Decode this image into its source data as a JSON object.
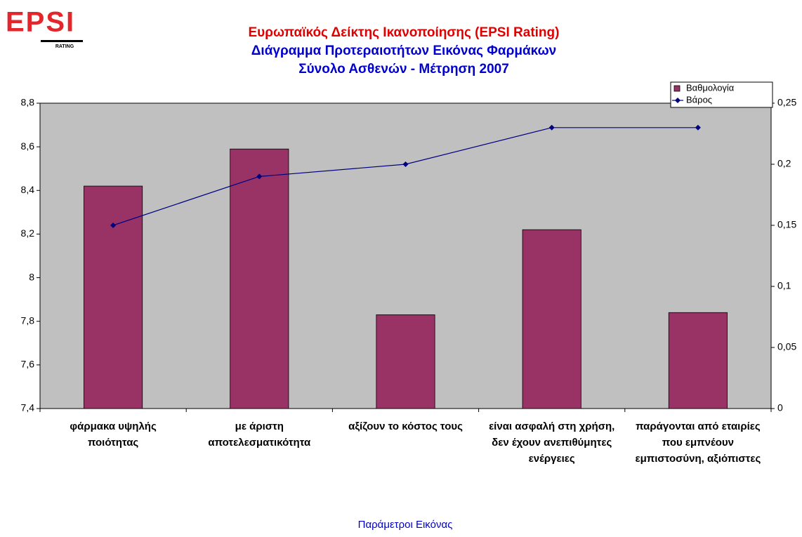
{
  "logo": {
    "text": "EPSI",
    "subtext": "RATING"
  },
  "chart_data": {
    "type": "bar",
    "title": "Ευρωπαϊκός Δείκτης Ικανοποίησης (EPSI Rating)",
    "subtitle": [
      "Διάγραμμα Προτεραιοτήτων Εικόνας Φαρμάκων",
      "Σύνολο Ασθενών - Μέτρηση 2007"
    ],
    "x_label": "Παράμετροι Εικόνας",
    "categories": [
      "φάρμακα υψηλής ποιότητας",
      "με άριστη αποτελεσματικότητα",
      "αξίζουν το κόστος τους",
      "είναι ασφαλή στη χρήση, δεν έχουν ανεπιθύμητες ενέργειες",
      "παράγονται από εταιρίες που εμπνέουν εμπιστοσύνη, αξιόπιστες"
    ],
    "series": [
      {
        "name": "Βαθμολογία",
        "type": "bar",
        "color": "#993366",
        "values": [
          8.42,
          8.59,
          7.83,
          8.22,
          7.84
        ]
      },
      {
        "name": "Βάρος",
        "type": "line",
        "axis": "y2",
        "color": "#000080",
        "values": [
          0.15,
          0.19,
          0.2,
          0.23,
          0.23
        ]
      }
    ],
    "ylim": [
      7.4,
      8.8
    ],
    "yticks": [
      {
        "value": 7.4,
        "label": "7,4"
      },
      {
        "value": 7.6,
        "label": "7,6"
      },
      {
        "value": 7.8,
        "label": "7,8"
      },
      8,
      {
        "value": 8.2,
        "label": "8,2"
      },
      {
        "value": 8.4,
        "label": "8,4"
      },
      {
        "value": 8.6,
        "label": "8,6"
      },
      {
        "value": 8.8,
        "label": "8,8"
      }
    ],
    "y2lim": [
      0,
      0.25
    ],
    "y2ticks": [
      0,
      {
        "value": 0.05,
        "label": "0,05"
      },
      {
        "value": 0.1,
        "label": "0,1"
      },
      {
        "value": 0.15,
        "label": "0,15"
      },
      {
        "value": 0.2,
        "label": "0,2"
      },
      {
        "value": 0.25,
        "label": "0,25"
      }
    ],
    "grid": false,
    "legend": "top-right",
    "plot_color": "#c0c0c0"
  }
}
